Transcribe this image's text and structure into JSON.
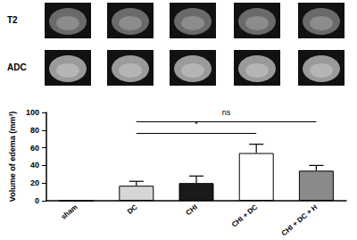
{
  "image_panel": {
    "rows": [
      "T2",
      "ADC"
    ]
  },
  "chart_data": {
    "type": "bar",
    "y_label": "Volume of edema (mm³)",
    "categories": [
      "sham",
      "DC",
      "CHI",
      "CHI + DC",
      "CHI + DC + H"
    ],
    "values": [
      0,
      17,
      20,
      54,
      34
    ],
    "errors": [
      0,
      5,
      8,
      10,
      6
    ],
    "colors": [
      "#ffffff",
      "#d6d6d6",
      "#1a1a1a",
      "#ffffff",
      "#8a8a8a"
    ],
    "ylim": [
      0,
      100
    ],
    "yticks": [
      0,
      20,
      40,
      60,
      80,
      100
    ],
    "grid": false,
    "annotations": [
      {
        "text": "ns",
        "from": "DC",
        "to": "CHI + DC + H",
        "y": 90
      },
      {
        "text": "*",
        "from": "DC",
        "to": "CHI + DC",
        "y": 77
      }
    ]
  }
}
